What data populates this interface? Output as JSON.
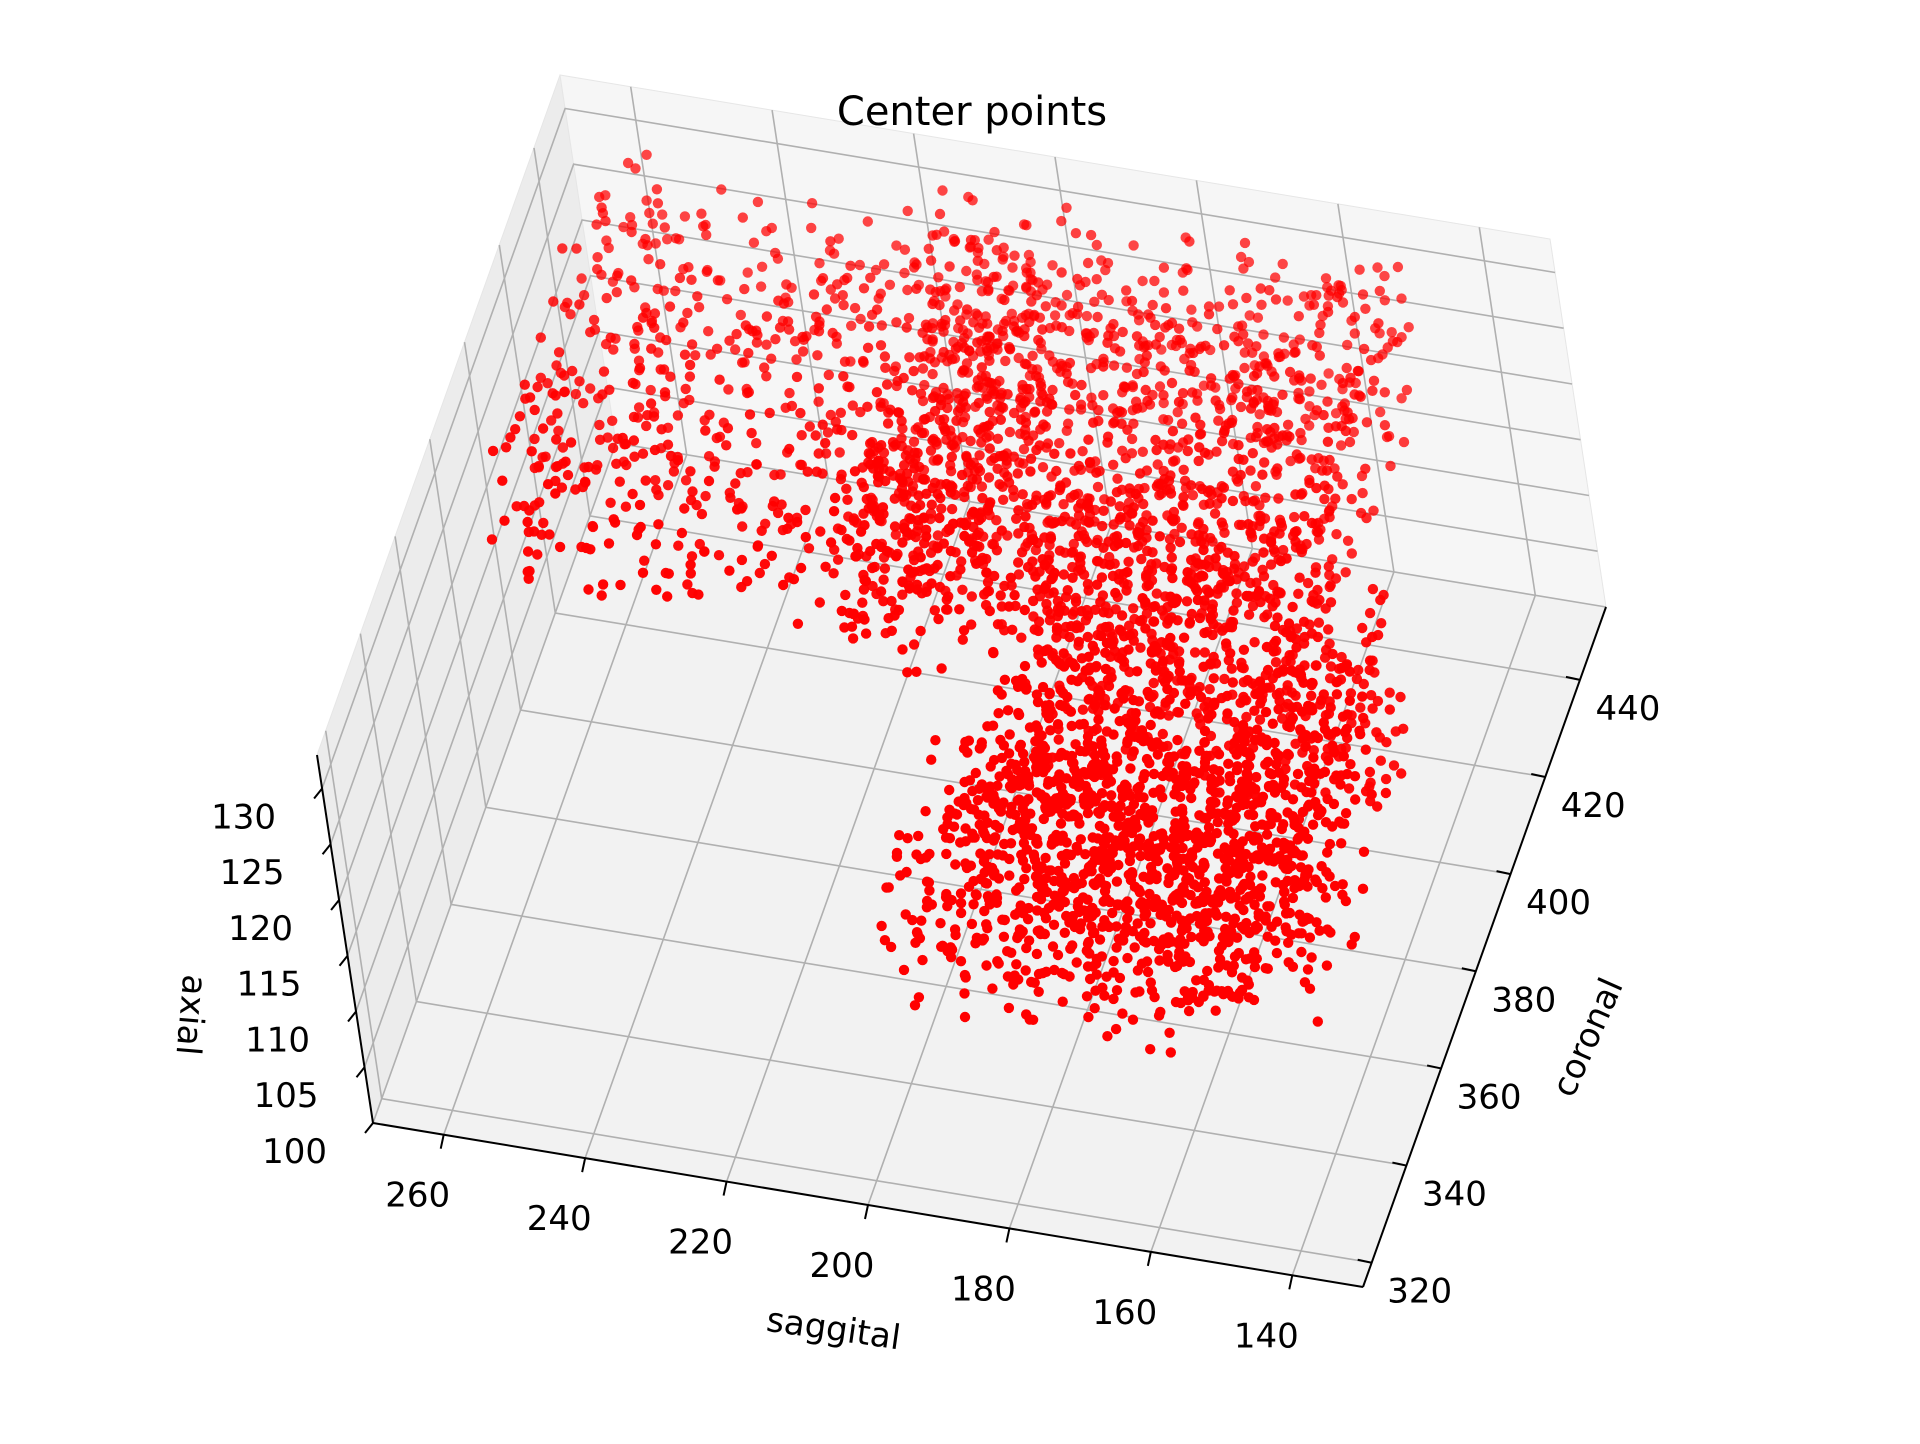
{
  "chart_data": {
    "type": "scatter",
    "projection": "3d",
    "title": "Center points",
    "xlabel": "saggital",
    "ylabel": "coronal",
    "zlabel": "axial",
    "xlim": [
      130,
      270
    ],
    "ylim": [
      315,
      455
    ],
    "zlim": [
      100,
      133
    ],
    "x_ticks": [
      "260",
      "240",
      "220",
      "200",
      "180",
      "160",
      "140"
    ],
    "y_ticks": [
      "320",
      "340",
      "360",
      "380",
      "400",
      "420",
      "440"
    ],
    "z_ticks": [
      "100",
      "105",
      "110",
      "115",
      "120",
      "125",
      "130"
    ],
    "grid": true,
    "marker_color": "#ff0000",
    "pane_color": "#f2f2f2",
    "grid_color": "#b0b0b0",
    "series": [
      {
        "point_count_estimate": 5000,
        "sampled_regions": [
          {
            "x_range": [
              200,
              265
            ],
            "y_range": [
              380,
              450
            ],
            "z_range": [
              120,
              130
            ],
            "count": 700
          },
          {
            "x_range": [
              150,
              215
            ],
            "y_range": [
              380,
              450
            ],
            "z_range": [
              118,
              132
            ],
            "count": 1500
          },
          {
            "x_range": [
              140,
              190
            ],
            "y_range": [
              340,
              400
            ],
            "z_range": [
              110,
              126
            ],
            "count": 1300
          },
          {
            "x_range": [
              150,
              200
            ],
            "y_range": [
              335,
              375
            ],
            "z_range": [
              108,
              120
            ],
            "count": 500
          }
        ]
      }
    ]
  }
}
